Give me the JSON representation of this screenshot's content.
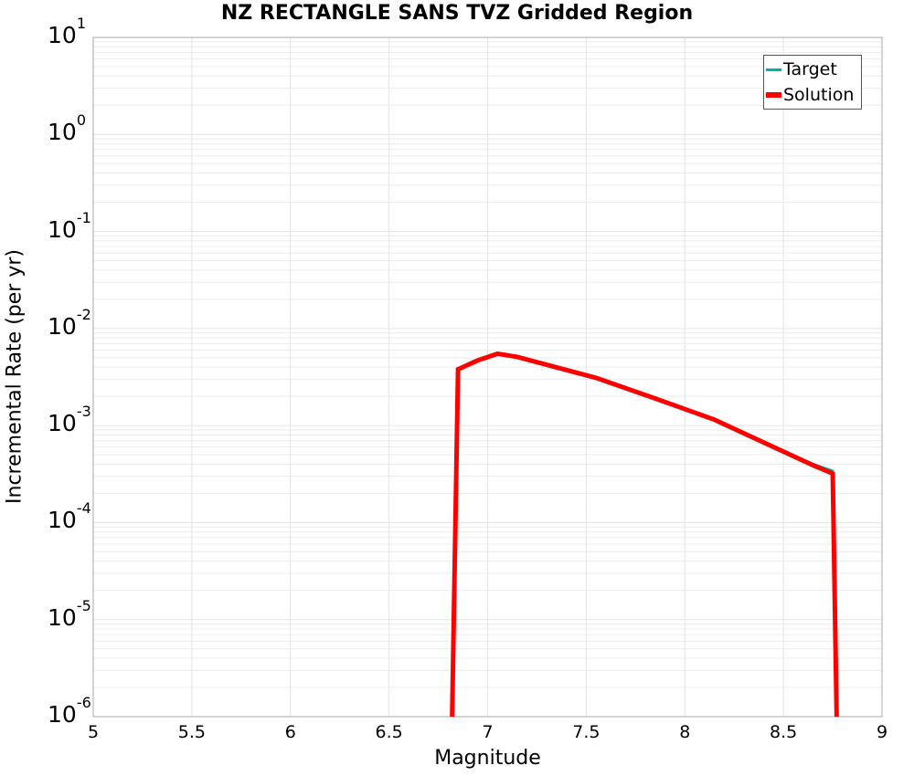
{
  "chart_data": {
    "type": "line",
    "title": "NZ RECTANGLE SANS TVZ Gridded Region",
    "xlabel": "Magnitude",
    "ylabel": "Incremental Rate (per yr)",
    "xlim": [
      5,
      9
    ],
    "ylim": [
      1e-06,
      10
    ],
    "yscale": "log",
    "grid": true,
    "legend_position": "upper right",
    "x_ticks": [
      "5",
      "5.5",
      "6",
      "6.5",
      "7",
      "7.5",
      "8",
      "8.5",
      "9"
    ],
    "y_ticks": [
      {
        "base": "10",
        "exp": "1"
      },
      {
        "base": "10",
        "exp": "0"
      },
      {
        "base": "10",
        "exp": "-1"
      },
      {
        "base": "10",
        "exp": "-2"
      },
      {
        "base": "10",
        "exp": "-3"
      },
      {
        "base": "10",
        "exp": "-4"
      },
      {
        "base": "10",
        "exp": "-5"
      },
      {
        "base": "10",
        "exp": "-6"
      }
    ],
    "series": [
      {
        "name": "Target",
        "color": "#00b2b2",
        "x": [
          6.82,
          6.85,
          6.95,
          7.05,
          7.15,
          7.55,
          7.85,
          8.15,
          8.65,
          8.75,
          8.77
        ],
        "values": [
          1e-06,
          0.0038,
          0.0047,
          0.0055,
          0.0051,
          0.0031,
          0.0019,
          0.00115,
          0.0004,
          0.00034,
          1e-06
        ]
      },
      {
        "name": "Solution",
        "color": "#ff0000",
        "x": [
          6.82,
          6.85,
          6.95,
          7.05,
          7.15,
          7.55,
          7.85,
          8.15,
          8.65,
          8.75,
          8.77
        ],
        "values": [
          1e-06,
          0.0038,
          0.0047,
          0.0055,
          0.0051,
          0.0031,
          0.0019,
          0.00115,
          0.00039,
          0.00032,
          1e-06
        ]
      }
    ]
  }
}
